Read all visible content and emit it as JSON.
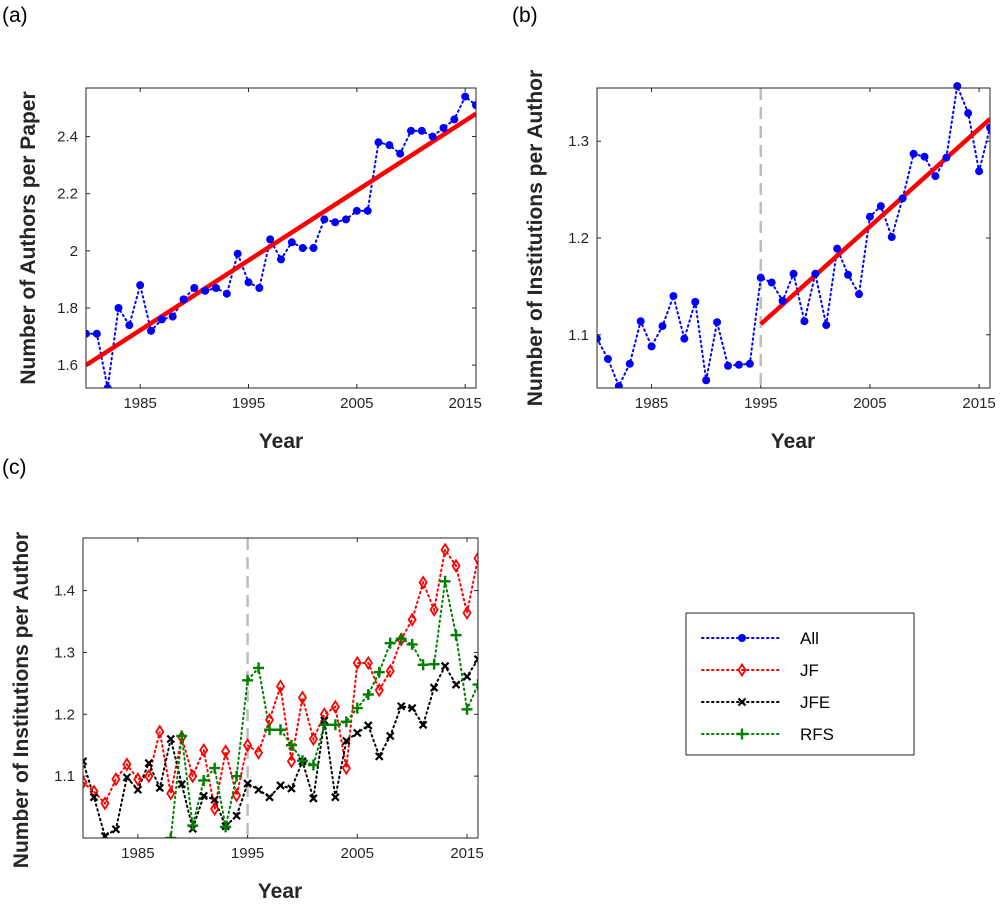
{
  "colors": {
    "All": "#0000ff",
    "JF": "#ff0000",
    "JFE": "#000000",
    "RFS": "#008000",
    "fit": "#ff0000",
    "divider": "#bdbdbd"
  },
  "chart_data": [
    {
      "type": "line",
      "panel_label": "(a)",
      "xlabel": "Year",
      "ylabel": "Number of Authors per Paper",
      "xlim": [
        1980,
        2016
      ],
      "ylim": [
        1.52,
        2.57
      ],
      "xticks": [
        1985,
        1995,
        2005,
        2015
      ],
      "yticks": [
        1.6,
        1.8,
        2,
        2.2,
        2.4
      ],
      "x": [
        1980,
        1981,
        1982,
        1983,
        1984,
        1985,
        1986,
        1987,
        1988,
        1989,
        1990,
        1991,
        1992,
        1993,
        1994,
        1995,
        1996,
        1997,
        1998,
        1999,
        2000,
        2001,
        2002,
        2003,
        2004,
        2005,
        2006,
        2007,
        2008,
        2009,
        2010,
        2011,
        2012,
        2013,
        2014,
        2015,
        2016
      ],
      "series": [
        {
          "name": "All",
          "marker": "dot",
          "values": [
            1.71,
            1.71,
            1.52,
            1.8,
            1.74,
            1.88,
            1.72,
            1.76,
            1.77,
            1.83,
            1.87,
            1.86,
            1.87,
            1.85,
            1.99,
            1.89,
            1.87,
            2.04,
            1.97,
            2.03,
            2.01,
            2.01,
            2.11,
            2.1,
            2.11,
            2.14,
            2.14,
            2.38,
            2.37,
            2.34,
            2.42,
            2.42,
            2.4,
            2.43,
            2.46,
            2.54,
            2.51
          ]
        }
      ],
      "fit": {
        "x": [
          1980,
          2016
        ],
        "y": [
          1.6,
          2.48
        ]
      },
      "vline": null
    },
    {
      "type": "line",
      "panel_label": "(b)",
      "xlabel": "Year",
      "ylabel": "Number of Institutions per Author",
      "xlim": [
        1980,
        2016
      ],
      "ylim": [
        1.045,
        1.355
      ],
      "xticks": [
        1985,
        1995,
        2005,
        2015
      ],
      "yticks": [
        1.1,
        1.2,
        1.3
      ],
      "x": [
        1980,
        1981,
        1982,
        1983,
        1984,
        1985,
        1986,
        1987,
        1988,
        1989,
        1990,
        1991,
        1992,
        1993,
        1994,
        1995,
        1996,
        1997,
        1998,
        1999,
        2000,
        2001,
        2002,
        2003,
        2004,
        2005,
        2006,
        2007,
        2008,
        2009,
        2010,
        2011,
        2012,
        2013,
        2014,
        2015,
        2016
      ],
      "series": [
        {
          "name": "All",
          "marker": "dot",
          "values": [
            1.096,
            1.075,
            1.047,
            1.07,
            1.114,
            1.088,
            1.109,
            1.14,
            1.096,
            1.134,
            1.053,
            1.113,
            1.068,
            1.069,
            1.07,
            1.159,
            1.154,
            1.135,
            1.163,
            1.114,
            1.163,
            1.11,
            1.189,
            1.162,
            1.142,
            1.222,
            1.233,
            1.201,
            1.241,
            1.287,
            1.284,
            1.264,
            1.283,
            1.357,
            1.329,
            1.269,
            1.314
          ]
        }
      ],
      "fit": {
        "x": [
          1995,
          2016
        ],
        "y": [
          1.111,
          1.323
        ]
      },
      "vline": 1995
    },
    {
      "type": "line",
      "panel_label": "(c)",
      "xlabel": "Year",
      "ylabel": "Number of Institutions per Author",
      "xlim": [
        1980,
        2016
      ],
      "ylim": [
        1.0,
        1.485
      ],
      "xticks": [
        1985,
        1995,
        2005,
        2015
      ],
      "yticks": [
        1.1,
        1.2,
        1.3,
        1.4
      ],
      "x": [
        1980,
        1981,
        1982,
        1983,
        1984,
        1985,
        1986,
        1987,
        1988,
        1989,
        1990,
        1991,
        1992,
        1993,
        1994,
        1995,
        1996,
        1997,
        1998,
        1999,
        2000,
        2001,
        2002,
        2003,
        2004,
        2005,
        2006,
        2007,
        2008,
        2009,
        2010,
        2011,
        2012,
        2013,
        2014,
        2015,
        2016
      ],
      "series": [
        {
          "name": "JF",
          "marker": "diamond",
          "values": [
            1.09,
            1.075,
            1.056,
            1.095,
            1.119,
            1.095,
            1.1,
            1.172,
            1.072,
            1.163,
            1.1,
            1.142,
            1.047,
            1.14,
            1.069,
            1.15,
            1.138,
            1.191,
            1.245,
            1.124,
            1.227,
            1.16,
            1.2,
            1.212,
            1.113,
            1.283,
            1.283,
            1.239,
            1.27,
            1.321,
            1.353,
            1.413,
            1.369,
            1.466,
            1.44,
            1.364,
            1.452
          ]
        },
        {
          "name": "JFE",
          "marker": "x",
          "values": [
            1.124,
            1.066,
            1.003,
            1.014,
            1.098,
            1.078,
            1.121,
            1.081,
            1.16,
            1.087,
            1.015,
            1.068,
            1.062,
            1.019,
            1.036,
            1.088,
            1.078,
            1.066,
            1.085,
            1.08,
            1.124,
            1.064,
            1.19,
            1.066,
            1.157,
            1.17,
            1.182,
            1.132,
            1.165,
            1.213,
            1.21,
            1.183,
            1.243,
            1.278,
            1.248,
            1.261,
            1.289
          ]
        },
        {
          "name": "RFS",
          "marker": "plus",
          "values": [
            null,
            null,
            null,
            null,
            null,
            null,
            null,
            null,
            1.0,
            1.165,
            1.02,
            1.093,
            1.113,
            1.018,
            1.1,
            1.255,
            1.275,
            1.175,
            1.175,
            1.15,
            1.125,
            1.118,
            1.183,
            1.183,
            1.188,
            1.21,
            1.232,
            1.268,
            1.315,
            1.322,
            1.313,
            1.28,
            1.281,
            1.415,
            1.328,
            1.208,
            1.248
          ]
        }
      ],
      "fit": null,
      "vline": 1995
    }
  ],
  "legend": {
    "entries": [
      "All",
      "JF",
      "JFE",
      "RFS"
    ],
    "markers": [
      "dot",
      "diamond",
      "x",
      "plus"
    ]
  }
}
